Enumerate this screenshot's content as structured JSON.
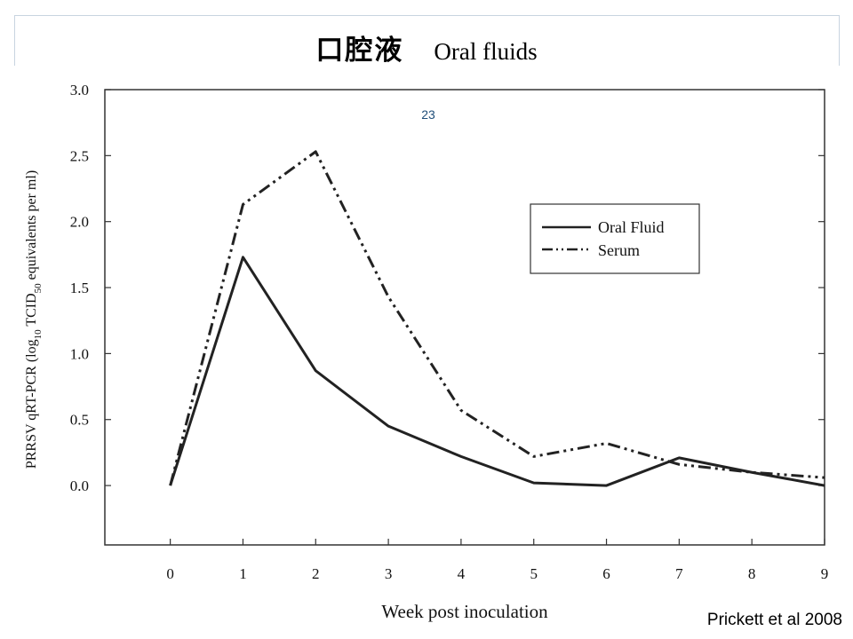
{
  "slide": {
    "title_cjk": "口腔液",
    "title_en": "Oral fluids",
    "page_number": "23",
    "citation": "Prickett et al 2008"
  },
  "chart_data": {
    "type": "line",
    "title": "",
    "xlabel": "Week post inoculation",
    "ylabel": "PRRSV qRT-PCR (log10 TCID50 equivalents per ml)",
    "x": [
      0,
      1,
      2,
      3,
      4,
      5,
      6,
      7,
      8,
      9
    ],
    "xticks": [
      "0",
      "1",
      "2",
      "3",
      "4",
      "5",
      "6",
      "7",
      "8",
      "9"
    ],
    "xlim": [
      -0.9,
      9.0
    ],
    "ylim": [
      -0.45,
      3.0
    ],
    "yticks": [
      "0.0",
      "0.5",
      "1.0",
      "1.5",
      "2.0",
      "2.5",
      "3.0"
    ],
    "legend_position": "right",
    "series": [
      {
        "name": "Oral Fluid",
        "style": "solid",
        "color": "#222222",
        "values": [
          0.0,
          1.73,
          0.87,
          0.45,
          0.22,
          0.02,
          0.0,
          0.21,
          0.1,
          0.0
        ]
      },
      {
        "name": "Serum",
        "style": "dash-dot-dot",
        "color": "#222222",
        "values": [
          0.0,
          2.13,
          2.53,
          1.43,
          0.57,
          0.22,
          0.32,
          0.16,
          0.1,
          0.06
        ]
      }
    ]
  }
}
